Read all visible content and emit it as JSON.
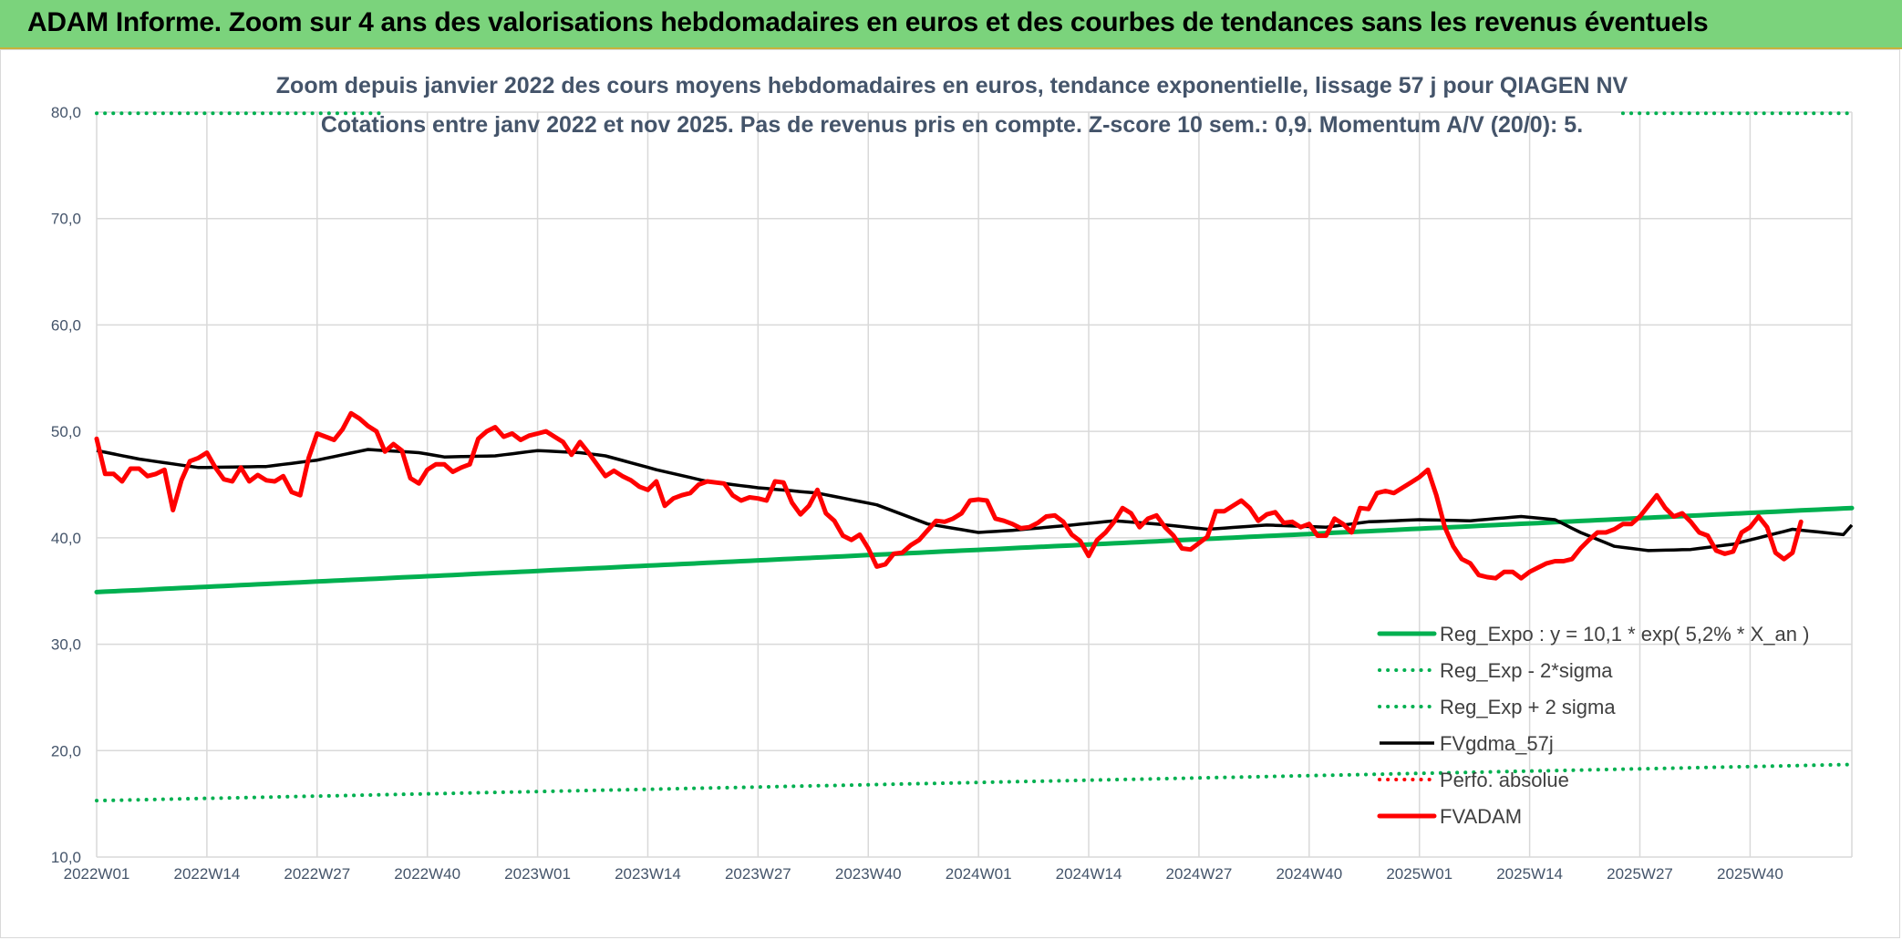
{
  "header": {
    "title": "ADAM Informe. Zoom sur 4 ans des valorisations hebdomadaires en euros et des courbes de tendances sans les revenus éventuels"
  },
  "chart_data": {
    "type": "line",
    "title": "Zoom depuis janvier 2022 des cours moyens hebdomadaires en euros, tendance exponentielle, lissage 57 j pour QIAGEN NV",
    "subtitle": "Cotations entre janv 2022 et nov 2025. Pas de revenus pris en compte. Z-score 10 sem.: 0,9. Momentum A/V (20/0): 5.",
    "xlabel": "",
    "ylabel": "",
    "ylim": [
      10,
      80
    ],
    "y_ticks": [
      "10,0",
      "20,0",
      "30,0",
      "40,0",
      "50,0",
      "60,0",
      "70,0",
      "80,0"
    ],
    "x_ticks": [
      "2022W01",
      "2022W14",
      "2022W27",
      "2022W40",
      "2023W01",
      "2023W14",
      "2023W27",
      "2023W40",
      "2024W01",
      "2024W14",
      "2024W27",
      "2024W40",
      "2025W01",
      "2025W14",
      "2025W27",
      "2025W40"
    ],
    "n_weeks": 208,
    "grid": true,
    "legend_position": "bottom-right",
    "colors": {
      "green": "#00b050",
      "red": "#ff0000",
      "black": "#000000",
      "grid": "#d9d9d9",
      "text": "#44546a"
    },
    "series": [
      {
        "name": "Reg_Expo : y = 10,1 * exp( 5,2% *  X_an )",
        "style": "solid-thick",
        "color": "#00b050",
        "anchors": [
          [
            0,
            34.9
          ],
          [
            207,
            42.8
          ]
        ]
      },
      {
        "name": "Reg_Exp - 2*sigma",
        "style": "dotted",
        "color": "#00b050",
        "anchors": [
          [
            0,
            15.3
          ],
          [
            207,
            18.7
          ]
        ]
      },
      {
        "name": "Reg_Exp + 2 sigma",
        "style": "dotted",
        "color": "#00b050",
        "anchors": [
          [
            0,
            79.9
          ],
          [
            207,
            79.9
          ]
        ]
      },
      {
        "name": "FVgdma_57j",
        "style": "solid",
        "color": "#000000",
        "anchors": [
          [
            0,
            48.2
          ],
          [
            5,
            47.4
          ],
          [
            12,
            46.6
          ],
          [
            20,
            46.7
          ],
          [
            26,
            47.3
          ],
          [
            32,
            48.3
          ],
          [
            38,
            48.0
          ],
          [
            41,
            47.6
          ],
          [
            47,
            47.7
          ],
          [
            52,
            48.2
          ],
          [
            57,
            48.0
          ],
          [
            60,
            47.7
          ],
          [
            66,
            46.4
          ],
          [
            72,
            45.3
          ],
          [
            78,
            44.7
          ],
          [
            85,
            44.2
          ],
          [
            92,
            43.1
          ],
          [
            98,
            41.3
          ],
          [
            104,
            40.5
          ],
          [
            108,
            40.7
          ],
          [
            115,
            41.2
          ],
          [
            120,
            41.6
          ],
          [
            125,
            41.3
          ],
          [
            131,
            40.8
          ],
          [
            138,
            41.2
          ],
          [
            145,
            41.0
          ],
          [
            150,
            41.5
          ],
          [
            156,
            41.7
          ],
          [
            162,
            41.6
          ],
          [
            168,
            42.0
          ],
          [
            172,
            41.7
          ],
          [
            175,
            40.5
          ],
          [
            179,
            39.2
          ],
          [
            183,
            38.8
          ],
          [
            188,
            38.9
          ],
          [
            193,
            39.4
          ],
          [
            200,
            40.8
          ],
          [
            206,
            40.3
          ],
          [
            207,
            41.2
          ]
        ]
      },
      {
        "name": "Perfo. absolue",
        "style": "dotted",
        "color": "#ff0000",
        "anchors": []
      },
      {
        "name": "FVADAM",
        "style": "solid-thick",
        "color": "#ff0000",
        "anchors": [
          [
            0,
            49.3
          ],
          [
            1,
            46.0
          ],
          [
            2,
            46.0
          ],
          [
            3,
            45.3
          ],
          [
            4,
            46.5
          ],
          [
            5,
            46.5
          ],
          [
            6,
            45.8
          ],
          [
            7,
            46.0
          ],
          [
            8,
            46.4
          ],
          [
            9,
            42.6
          ],
          [
            10,
            45.4
          ],
          [
            11,
            47.2
          ],
          [
            12,
            47.5
          ],
          [
            13,
            48.0
          ],
          [
            14,
            46.6
          ],
          [
            15,
            45.5
          ],
          [
            16,
            45.3
          ],
          [
            17,
            46.6
          ],
          [
            18,
            45.3
          ],
          [
            19,
            45.9
          ],
          [
            20,
            45.4
          ],
          [
            21,
            45.3
          ],
          [
            22,
            45.8
          ],
          [
            23,
            44.3
          ],
          [
            24,
            44.0
          ],
          [
            25,
            47.5
          ],
          [
            26,
            49.8
          ],
          [
            27,
            49.5
          ],
          [
            28,
            49.2
          ],
          [
            29,
            50.2
          ],
          [
            30,
            51.7
          ],
          [
            31,
            51.2
          ],
          [
            32,
            50.5
          ],
          [
            33,
            50.0
          ],
          [
            34,
            48.1
          ],
          [
            35,
            48.8
          ],
          [
            36,
            48.2
          ],
          [
            37,
            45.6
          ],
          [
            38,
            45.1
          ],
          [
            39,
            46.4
          ],
          [
            40,
            46.9
          ],
          [
            41,
            46.9
          ],
          [
            42,
            46.2
          ],
          [
            43,
            46.6
          ],
          [
            44,
            46.9
          ],
          [
            45,
            49.3
          ],
          [
            46,
            50.0
          ],
          [
            47,
            50.4
          ],
          [
            48,
            49.5
          ],
          [
            49,
            49.8
          ],
          [
            50,
            49.2
          ],
          [
            51,
            49.6
          ],
          [
            52,
            49.8
          ],
          [
            53,
            50.0
          ],
          [
            54,
            49.5
          ],
          [
            55,
            49.0
          ],
          [
            56,
            47.8
          ],
          [
            57,
            49.0
          ],
          [
            58,
            48.0
          ],
          [
            59,
            46.9
          ],
          [
            60,
            45.8
          ],
          [
            61,
            46.3
          ],
          [
            62,
            45.8
          ],
          [
            63,
            45.4
          ],
          [
            64,
            44.8
          ],
          [
            65,
            44.5
          ],
          [
            66,
            45.3
          ],
          [
            67,
            43.0
          ],
          [
            68,
            43.7
          ],
          [
            69,
            44.0
          ],
          [
            70,
            44.2
          ],
          [
            71,
            45.0
          ],
          [
            72,
            45.3
          ],
          [
            73,
            45.2
          ],
          [
            74,
            45.1
          ],
          [
            75,
            44.0
          ],
          [
            76,
            43.5
          ],
          [
            77,
            43.8
          ],
          [
            78,
            43.7
          ],
          [
            79,
            43.5
          ],
          [
            80,
            45.3
          ],
          [
            81,
            45.2
          ],
          [
            82,
            43.3
          ],
          [
            83,
            42.2
          ],
          [
            84,
            43.0
          ],
          [
            85,
            44.5
          ],
          [
            86,
            42.3
          ],
          [
            87,
            41.6
          ],
          [
            88,
            40.2
          ],
          [
            89,
            39.8
          ],
          [
            90,
            40.3
          ],
          [
            91,
            39.0
          ],
          [
            92,
            37.3
          ],
          [
            93,
            37.5
          ],
          [
            94,
            38.5
          ],
          [
            95,
            38.6
          ],
          [
            96,
            39.3
          ],
          [
            97,
            39.8
          ],
          [
            98,
            40.7
          ],
          [
            99,
            41.6
          ],
          [
            100,
            41.5
          ],
          [
            101,
            41.8
          ],
          [
            102,
            42.3
          ],
          [
            103,
            43.5
          ],
          [
            104,
            43.6
          ],
          [
            105,
            43.5
          ],
          [
            106,
            41.8
          ],
          [
            107,
            41.6
          ],
          [
            108,
            41.3
          ],
          [
            109,
            40.9
          ],
          [
            110,
            41.0
          ],
          [
            111,
            41.4
          ],
          [
            112,
            42.0
          ],
          [
            113,
            42.1
          ],
          [
            114,
            41.5
          ],
          [
            115,
            40.3
          ],
          [
            116,
            39.7
          ],
          [
            117,
            38.3
          ],
          [
            118,
            39.8
          ],
          [
            119,
            40.5
          ],
          [
            120,
            41.5
          ],
          [
            121,
            42.8
          ],
          [
            122,
            42.3
          ],
          [
            123,
            41.0
          ],
          [
            124,
            41.8
          ],
          [
            125,
            42.1
          ],
          [
            126,
            41.0
          ],
          [
            127,
            40.2
          ],
          [
            128,
            39.0
          ],
          [
            129,
            38.9
          ],
          [
            130,
            39.5
          ],
          [
            131,
            40.1
          ],
          [
            132,
            42.5
          ],
          [
            133,
            42.5
          ],
          [
            134,
            43.0
          ],
          [
            135,
            43.5
          ],
          [
            136,
            42.8
          ],
          [
            137,
            41.6
          ],
          [
            138,
            42.2
          ],
          [
            139,
            42.4
          ],
          [
            140,
            41.4
          ],
          [
            141,
            41.5
          ],
          [
            142,
            41.0
          ],
          [
            143,
            41.3
          ],
          [
            144,
            40.2
          ],
          [
            145,
            40.2
          ],
          [
            146,
            41.8
          ],
          [
            147,
            41.3
          ],
          [
            148,
            40.5
          ],
          [
            149,
            42.8
          ],
          [
            150,
            42.7
          ],
          [
            151,
            44.2
          ],
          [
            152,
            44.4
          ],
          [
            153,
            44.2
          ],
          [
            154,
            44.7
          ],
          [
            155,
            45.2
          ],
          [
            156,
            45.7
          ],
          [
            157,
            46.4
          ],
          [
            158,
            44.0
          ],
          [
            159,
            41.0
          ],
          [
            160,
            39.2
          ],
          [
            161,
            38.0
          ],
          [
            162,
            37.6
          ],
          [
            163,
            36.5
          ],
          [
            164,
            36.3
          ],
          [
            165,
            36.2
          ],
          [
            166,
            36.8
          ],
          [
            167,
            36.8
          ],
          [
            168,
            36.2
          ],
          [
            169,
            36.8
          ],
          [
            170,
            37.2
          ],
          [
            171,
            37.6
          ],
          [
            172,
            37.8
          ],
          [
            173,
            37.8
          ],
          [
            174,
            38.0
          ],
          [
            175,
            39.0
          ],
          [
            176,
            39.8
          ],
          [
            177,
            40.5
          ],
          [
            178,
            40.5
          ],
          [
            179,
            40.8
          ],
          [
            180,
            41.3
          ],
          [
            181,
            41.3
          ],
          [
            182,
            42.0
          ],
          [
            183,
            43.0
          ],
          [
            184,
            44.0
          ],
          [
            185,
            42.8
          ],
          [
            186,
            42.0
          ],
          [
            187,
            42.3
          ],
          [
            188,
            41.5
          ],
          [
            189,
            40.5
          ],
          [
            190,
            40.2
          ],
          [
            191,
            38.8
          ],
          [
            192,
            38.5
          ],
          [
            193,
            38.7
          ],
          [
            194,
            40.5
          ],
          [
            195,
            41.0
          ],
          [
            196,
            42.0
          ],
          [
            197,
            41.0
          ],
          [
            198,
            38.6
          ],
          [
            199,
            38.0
          ],
          [
            200,
            38.6
          ],
          [
            201,
            41.5
          ]
        ]
      }
    ]
  }
}
